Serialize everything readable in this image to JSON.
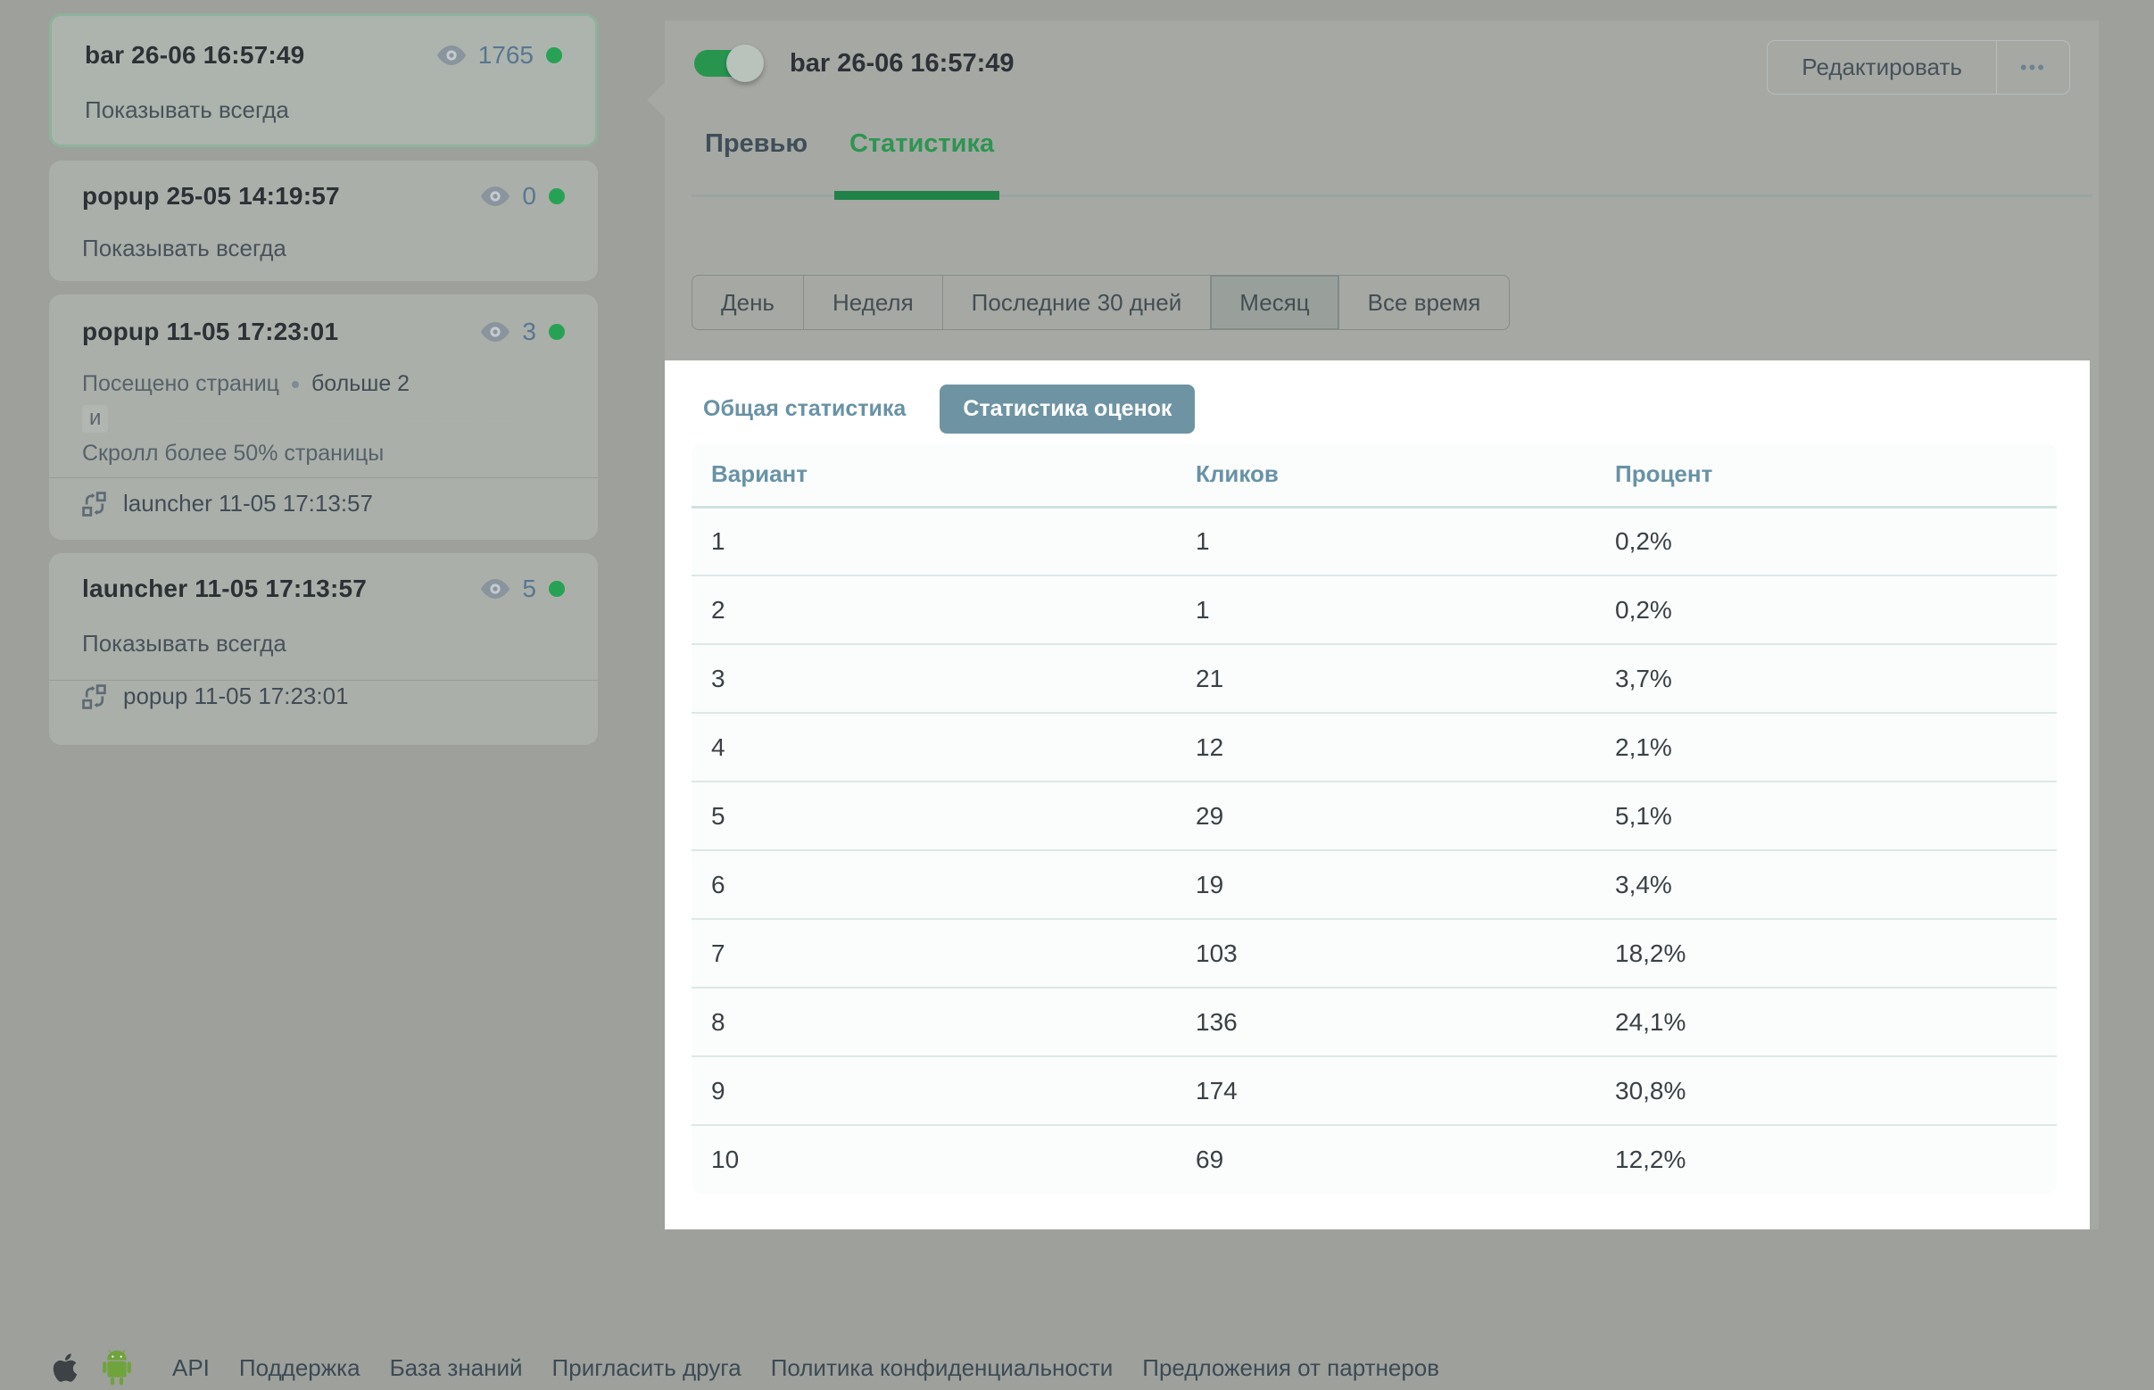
{
  "sidebar": {
    "widgets": [
      {
        "title": "bar 26-06 16:57:49",
        "views": "1765",
        "condition": "Показывать всегда",
        "selected": true
      },
      {
        "title": "popup 25-05 14:19:57",
        "views": "0",
        "condition": "Показывать всегда"
      },
      {
        "title": "popup 11-05 17:23:01",
        "views": "3",
        "condition_label": "Посещено страниц",
        "condition_value": "больше 2",
        "connector": "и",
        "condition2": "Скролл более 50% страницы",
        "linked_widget": "launcher 11-05 17:13:57"
      },
      {
        "title": "launcher 11-05 17:13:57",
        "views": "5",
        "condition": "Показывать всегда",
        "linked_widget": "popup 11-05 17:23:01"
      }
    ]
  },
  "main": {
    "title": "bar 26-06 16:57:49",
    "toggle_on": true,
    "edit_label": "Редактировать",
    "more_label": "•••",
    "tabs": [
      {
        "label": "Превью",
        "active": false
      },
      {
        "label": "Статистика",
        "active": true
      }
    ],
    "periods": [
      "День",
      "Неделя",
      "Последние 30 дней",
      "Месяц",
      "Все время"
    ],
    "selected_period": "Месяц",
    "stats_tabs": [
      {
        "label": "Общая статистика",
        "active": false
      },
      {
        "label": "Статистика оценок",
        "active": true
      }
    ]
  },
  "chart_data": {
    "type": "table",
    "title": "Статистика оценок",
    "columns": [
      "Вариант",
      "Кликов",
      "Процент"
    ],
    "rows": [
      [
        "1",
        "1",
        "0,2%"
      ],
      [
        "2",
        "1",
        "0,2%"
      ],
      [
        "3",
        "21",
        "3,7%"
      ],
      [
        "4",
        "12",
        "2,1%"
      ],
      [
        "5",
        "29",
        "5,1%"
      ],
      [
        "6",
        "19",
        "3,4%"
      ],
      [
        "7",
        "103",
        "18,2%"
      ],
      [
        "8",
        "136",
        "24,1%"
      ],
      [
        "9",
        "174",
        "30,8%"
      ],
      [
        "10",
        "69",
        "12,2%"
      ]
    ]
  },
  "footer": {
    "links": [
      "API",
      "Поддержка",
      "База знаний",
      "Пригласить друга",
      "Политика конфиденциальности",
      "Предложения от партнеров"
    ]
  },
  "colors": {
    "accent_green": "#27a254",
    "tab_green": "#2d9551",
    "slate_button": "#6e94a4",
    "table_header_text": "#6892a6",
    "overlay_gray": "#9ea09c"
  }
}
